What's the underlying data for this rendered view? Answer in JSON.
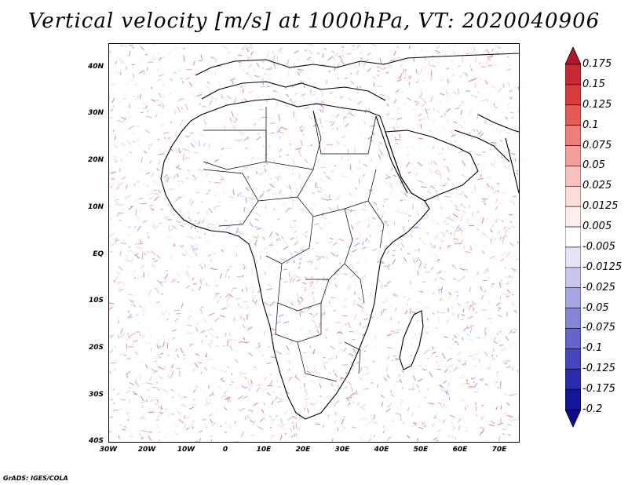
{
  "title": "Vertical velocity [m/s] at 1000hPa, VT: 2020040906",
  "credit": "GrADS: IGES/COLA",
  "lat_labels": [
    "40N",
    "30N",
    "20N",
    "10N",
    "EQ",
    "10S",
    "20S",
    "30S",
    "40S"
  ],
  "lon_labels": [
    "30W",
    "20W",
    "10W",
    "0",
    "10E",
    "20E",
    "30E",
    "40E",
    "50E",
    "60E",
    "70E"
  ],
  "colorbar": {
    "labels": [
      "0.175",
      "0.15",
      "0.125",
      "0.1",
      "0.075",
      "0.05",
      "0.025",
      "0.0125",
      "0.005",
      "-0.005",
      "-0.0125",
      "-0.025",
      "-0.05",
      "-0.075",
      "-0.1",
      "-0.125",
      "-0.175",
      "-0.2"
    ],
    "colors": [
      "#b2182b",
      "#c62a32",
      "#d93c3c",
      "#e55a55",
      "#ee7f78",
      "#f4a09a",
      "#f9c1bc",
      "#fcdcd8",
      "#fdeeee",
      "#ffffff",
      "#e4e4f6",
      "#c6c6ee",
      "#a6a6e4",
      "#8585d8",
      "#6464cc",
      "#4646bd",
      "#2a2aad",
      "#15159c",
      "#0b0b8c"
    ]
  }
}
